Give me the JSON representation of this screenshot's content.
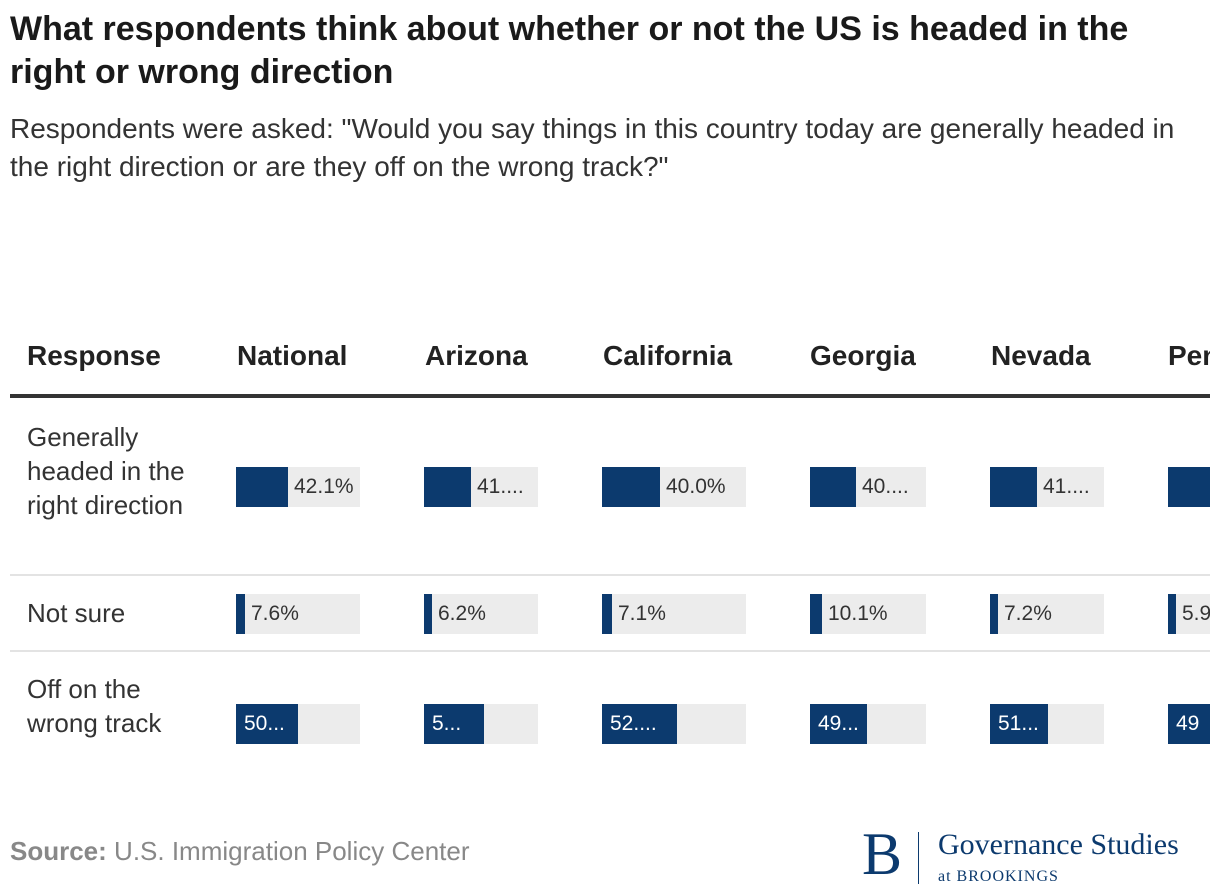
{
  "title": "What respondents think about whether or not the US is headed in the right or wrong direction",
  "subtitle": "Respondents were asked: \"Would you say things in this country today are generally headed in the right direction or are they off on the wrong track?\"",
  "source_label": "Source:",
  "source_text": "U.S. Immigration Policy Center",
  "logo": {
    "letter": "B",
    "main": "Governance Studies",
    "sub": "at BROOKINGS"
  },
  "colors": {
    "bar": "#0c3a6e",
    "track": "#ececec"
  },
  "chart_data": {
    "type": "table",
    "columns": [
      "Response",
      "National",
      "Arizona",
      "California",
      "Georgia",
      "Nevada",
      "Pennsylvania"
    ],
    "rows": [
      {
        "label": "Generally headed in the right direction",
        "values": [
          42.1,
          41.0,
          40.0,
          40.0,
          41.0,
          40.0
        ],
        "display": [
          "42.1%",
          "41....",
          "40.0%",
          "40....",
          "41....",
          ""
        ]
      },
      {
        "label": "Not sure",
        "values": [
          7.6,
          6.2,
          7.1,
          10.1,
          7.2,
          5.9
        ],
        "display": [
          "7.6%",
          "6.2%",
          "7.1%",
          "10.1%",
          "7.2%",
          "5.9"
        ]
      },
      {
        "label": "Off on the wrong track",
        "values": [
          50.0,
          53.0,
          52.0,
          49.0,
          51.0,
          49.0
        ],
        "display": [
          "50...",
          "5...",
          "52....",
          "49...",
          "51...",
          "49"
        ]
      }
    ],
    "max": 100
  }
}
